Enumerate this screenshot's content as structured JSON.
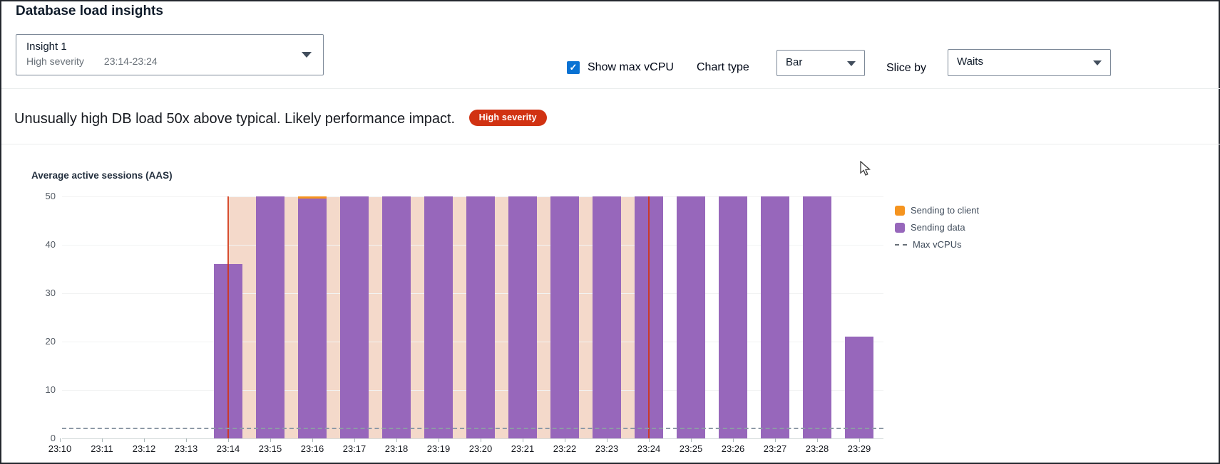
{
  "header": {
    "title": "Database load insights"
  },
  "insight_selector": {
    "name": "Insight 1",
    "severity": "High severity",
    "time_range": "23:14-23:24"
  },
  "controls": {
    "show_max_vcpu_label": "Show max vCPU",
    "show_max_vcpu_checked": true,
    "check_glyph": "✓",
    "chart_type_label": "Chart type",
    "chart_type_value": "Bar",
    "slice_by_label": "Slice by",
    "slice_by_value": "Waits"
  },
  "insight_message": {
    "text": "Unusually high DB load 50x above typical. Likely performance impact.",
    "badge": "High severity",
    "badge_color": "#d13212"
  },
  "chart_data": {
    "type": "bar",
    "title": "Average active sessions (AAS)",
    "ylabel": "Average active sessions (AAS)",
    "ylim": [
      0,
      50
    ],
    "yticks": [
      0,
      10,
      20,
      30,
      40,
      50
    ],
    "grid": true,
    "x": [
      "23:10",
      "23:11",
      "23:12",
      "23:13",
      "23:14",
      "23:15",
      "23:16",
      "23:17",
      "23:18",
      "23:19",
      "23:20",
      "23:21",
      "23:22",
      "23:23",
      "23:24",
      "23:25",
      "23:26",
      "23:27",
      "23:28",
      "23:29"
    ],
    "series": [
      {
        "name": "Sending to client",
        "color": "#f5941f",
        "values": [
          0,
          0,
          0,
          0,
          0,
          0,
          0.5,
          0,
          0,
          0,
          0,
          0,
          0,
          0,
          0,
          0,
          0,
          0,
          0,
          0
        ]
      },
      {
        "name": "Sending data",
        "color": "#9767bb",
        "values": [
          0,
          0,
          0,
          0,
          36,
          50,
          49.5,
          50,
          50,
          50,
          50,
          50,
          50,
          50,
          50,
          50,
          50,
          50,
          50,
          21
        ]
      }
    ],
    "max_vcpus": {
      "label": "Max vCPUs",
      "value": 2
    },
    "highlight_region": {
      "start": "23:14",
      "end": "23:24",
      "fill": "#f4d9ca",
      "border": "#d13212"
    },
    "legend": [
      {
        "label": "Sending to client",
        "swatch": "orange-square"
      },
      {
        "label": "Sending data",
        "swatch": "purple-square"
      },
      {
        "label": "Max vCPUs",
        "swatch": "dashed-line"
      }
    ],
    "legend_position": "right"
  }
}
